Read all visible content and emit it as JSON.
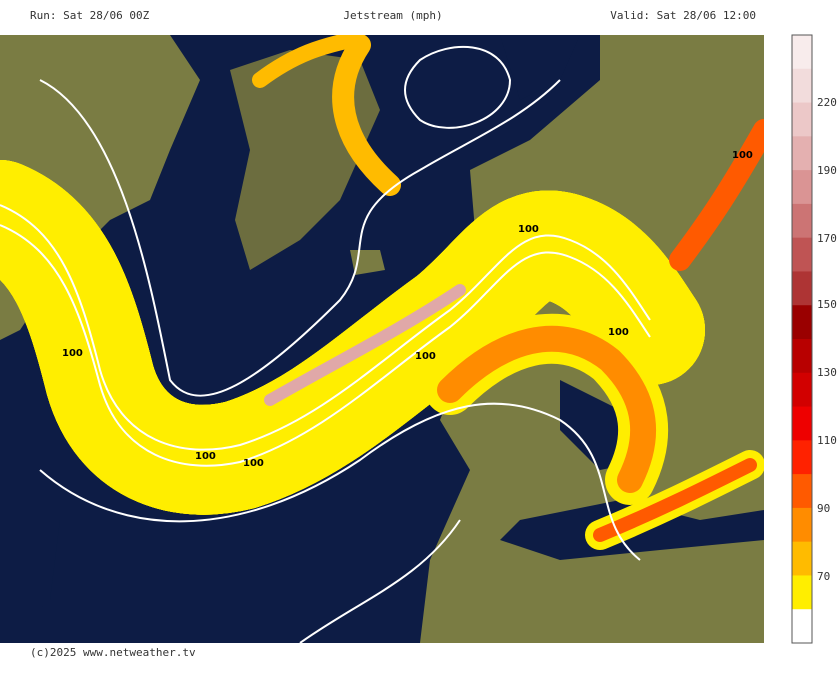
{
  "header": {
    "run": "Run: Sat 28/06 00Z",
    "title": "Jetstream (mph)",
    "valid": "Valid: Sat 28/06 12:00"
  },
  "map": {
    "contour_labels": [
      "100",
      "100",
      "100",
      "100",
      "100",
      "100",
      "100"
    ]
  },
  "legend": {
    "labels": [
      "220",
      "190",
      "170",
      "150",
      "130",
      "110",
      "90",
      "70"
    ],
    "colors": [
      "#f8ecec",
      "#f2dcdc",
      "#ecc8c8",
      "#e4b0b0",
      "#da9494",
      "#cc7474",
      "#bf5454",
      "#ae3434",
      "#9a0000",
      "#b80000",
      "#d20000",
      "#ee0000",
      "#ff2200",
      "#ff5a00",
      "#ff8c00",
      "#ffbb00",
      "#ffee00",
      "#ffffff"
    ]
  },
  "footer": {
    "credit": "(c)2025 www.netweather.tv"
  }
}
